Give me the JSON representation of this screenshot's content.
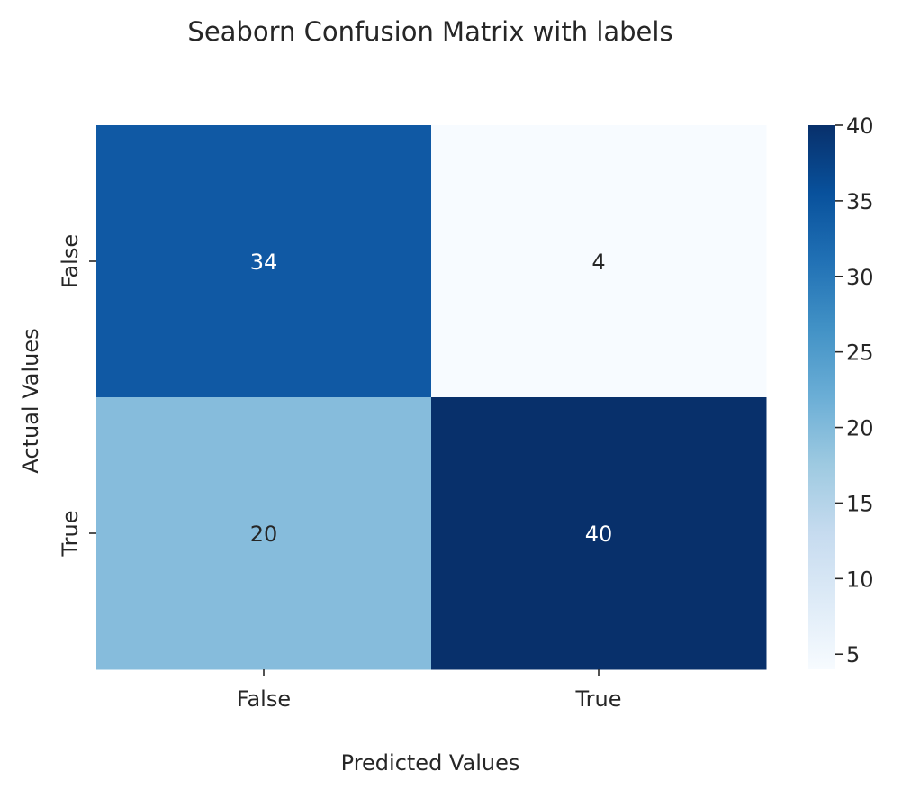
{
  "chart_data": {
    "type": "heatmap",
    "title": "Seaborn Confusion Matrix with labels",
    "xlabel": "Predicted Values",
    "ylabel": "Actual Values",
    "x_categories": [
      "False",
      "True"
    ],
    "y_categories": [
      "False",
      "True"
    ],
    "values": [
      [
        34,
        4
      ],
      [
        20,
        40
      ]
    ],
    "colormap": "Blues",
    "color_range": [
      4,
      40
    ],
    "colorbar": {
      "ticks": [
        5,
        10,
        15,
        20,
        25,
        30,
        35,
        40
      ],
      "tick_labels": [
        "5",
        "10",
        "15",
        "20",
        "25",
        "30",
        "35",
        "40"
      ]
    },
    "cell_colors": [
      [
        "#1059a4",
        "#f7fbff"
      ],
      [
        "#86bcdc",
        "#08306b"
      ]
    ],
    "annotation_colors": [
      [
        "#ffffff",
        "#262626"
      ],
      [
        "#262626",
        "#ffffff"
      ]
    ]
  }
}
